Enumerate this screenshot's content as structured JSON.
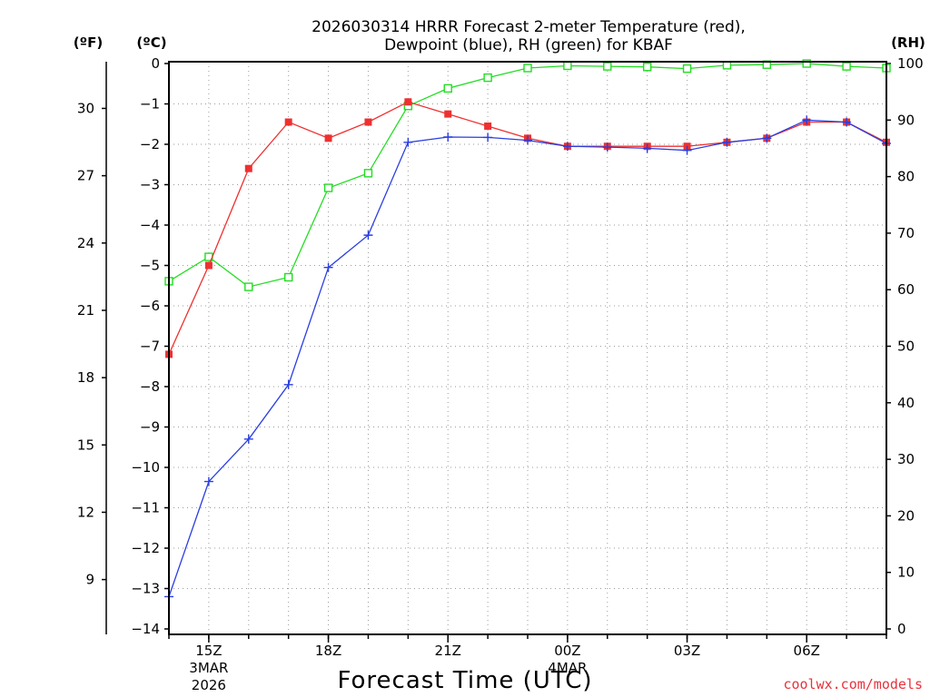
{
  "chart_data": {
    "type": "line",
    "title_lines": [
      "2026030314 HRRR Forecast 2-meter Temperature (red),",
      "Dewpoint (blue), RH (green) for KBAF"
    ],
    "xlabel": "Forecast Time (UTC)",
    "credit": "coolwx.com/models",
    "left_unit_f": "(ºF)",
    "left_unit_c": "(ºC)",
    "right_unit": "(RH)",
    "x_hours": [
      14,
      15,
      16,
      17,
      18,
      19,
      20,
      21,
      22,
      23,
      24,
      25,
      26,
      27,
      28,
      29,
      30,
      31,
      32
    ],
    "x_range": [
      14,
      32
    ],
    "x_ticks": [
      {
        "hour": 15,
        "label": "15Z",
        "sub1": "3MAR",
        "sub2": "2026"
      },
      {
        "hour": 18,
        "label": "18Z",
        "sub1": "",
        "sub2": ""
      },
      {
        "hour": 21,
        "label": "21Z",
        "sub1": "",
        "sub2": ""
      },
      {
        "hour": 24,
        "label": "00Z",
        "sub1": "4MAR",
        "sub2": ""
      },
      {
        "hour": 27,
        "label": "03Z",
        "sub1": "",
        "sub2": ""
      },
      {
        "hour": 30,
        "label": "06Z",
        "sub1": "",
        "sub2": ""
      }
    ],
    "ylim_c": [
      -14,
      0
    ],
    "yticks_c": [
      0,
      -1,
      -2,
      -3,
      -4,
      -5,
      -6,
      -7,
      -8,
      -9,
      -10,
      -11,
      -12,
      -13,
      -14
    ],
    "yticks_f": [
      30,
      27,
      24,
      21,
      18,
      15,
      12,
      9
    ],
    "ylim_rh": [
      0,
      100
    ],
    "yticks_rh": [
      100,
      90,
      80,
      70,
      60,
      50,
      40,
      30,
      20,
      10,
      0
    ],
    "grid": true,
    "series": [
      {
        "name": "Temperature",
        "color": "#ee3030",
        "marker": "filled-square",
        "axis": "c",
        "values": [
          -7.2,
          -5.0,
          -2.6,
          -1.45,
          -1.85,
          -1.45,
          -0.95,
          -1.25,
          -1.55,
          -1.85,
          -2.05,
          -2.05,
          -2.05,
          -2.05,
          -1.95,
          -1.85,
          -1.45,
          -1.45,
          -1.95
        ]
      },
      {
        "name": "Dewpoint",
        "color": "#2a3ee0",
        "marker": "plus",
        "axis": "c",
        "values": [
          -13.2,
          -10.35,
          -9.3,
          -7.95,
          -5.05,
          -4.25,
          -1.95,
          -1.82,
          -1.83,
          -1.9,
          -2.05,
          -2.07,
          -2.1,
          -2.15,
          -1.95,
          -1.85,
          -1.4,
          -1.45,
          -1.98
        ]
      },
      {
        "name": "RH",
        "color": "#22dd22",
        "marker": "open-square",
        "axis": "rh",
        "values": [
          61.5,
          65.8,
          60.5,
          62.2,
          78.0,
          80.6,
          92.5,
          95.6,
          97.5,
          99.2,
          99.6,
          99.5,
          99.4,
          99.1,
          99.7,
          99.8,
          100.0,
          99.5,
          99.2
        ]
      }
    ]
  }
}
